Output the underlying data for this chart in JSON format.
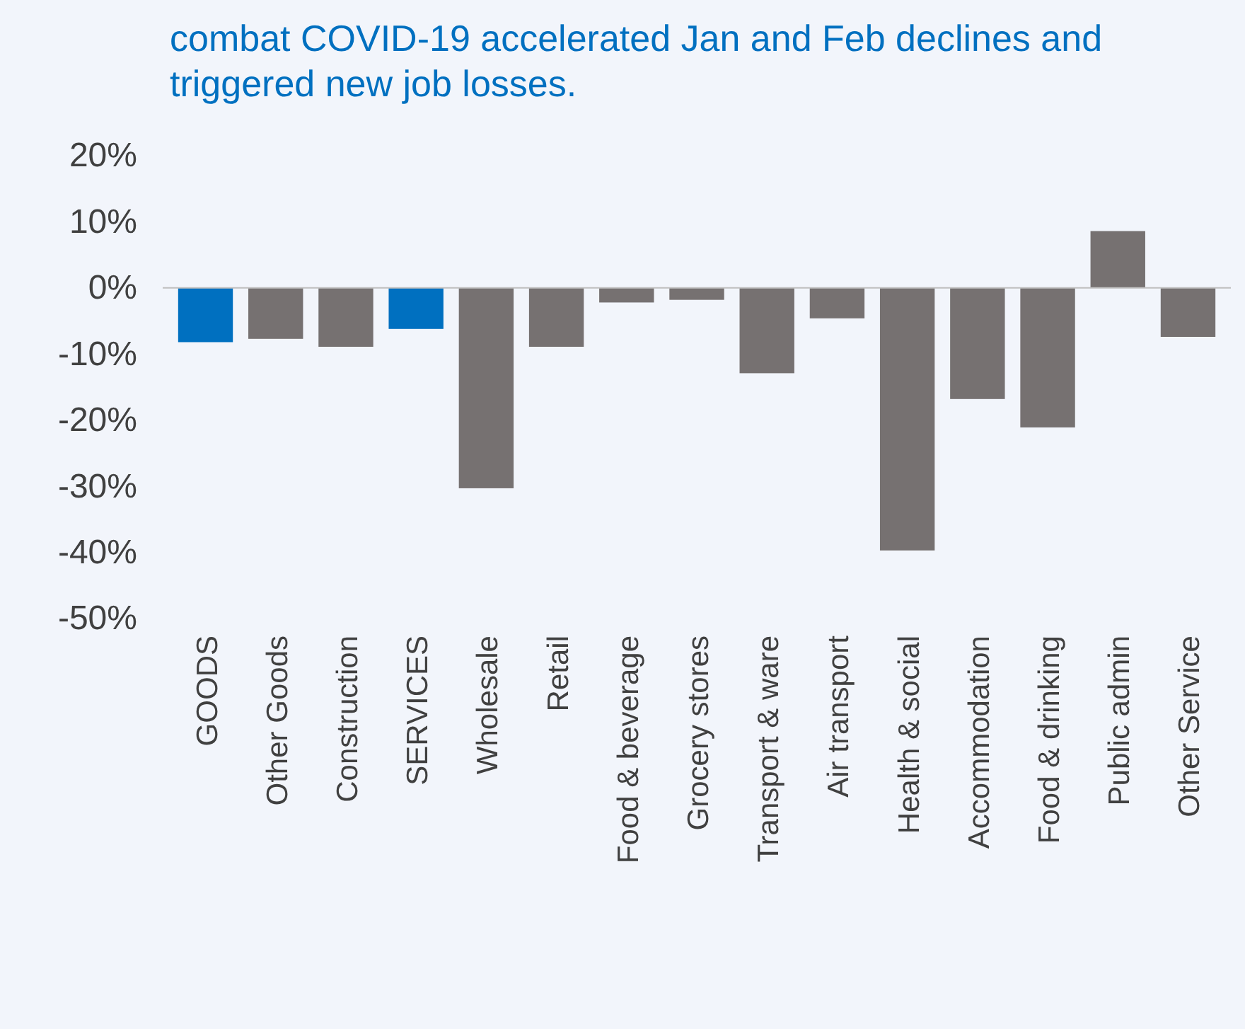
{
  "chart_data": {
    "type": "bar",
    "title": "combat COVID-19 accelerated Jan and Feb declines and triggered new job losses.",
    "categories": [
      "GOODS",
      "Other Goods",
      "Construction",
      "SERVICES",
      "Wholesale",
      "Retail",
      "Food & beverage",
      "Grocery stores",
      "Transport & ware",
      "Air transport",
      "Health & social",
      "Accommodation",
      "Food & drinking",
      "Public admin",
      "Other Service"
    ],
    "values": [
      -8.2,
      -7.7,
      -8.9,
      -6.2,
      -30.3,
      -8.9,
      -2.2,
      -1.8,
      -12.9,
      -4.6,
      -39.7,
      -16.8,
      -21.1,
      8.6,
      -7.4
    ],
    "colors": [
      "#0070c0",
      "#767171",
      "#767171",
      "#0070c0",
      "#767171",
      "#767171",
      "#767171",
      "#767171",
      "#767171",
      "#767171",
      "#767171",
      "#767171",
      "#767171",
      "#767171",
      "#767171"
    ],
    "ylim": [
      -50,
      20
    ],
    "yticks": [
      {
        "value": 20,
        "label": "20%"
      },
      {
        "value": 10,
        "label": "10%"
      },
      {
        "value": 0,
        "label": "0%"
      },
      {
        "value": -10,
        "label": "-10%"
      },
      {
        "value": -20,
        "label": "-20%"
      },
      {
        "value": -30,
        "label": "-30%"
      },
      {
        "value": -40,
        "label": "-40%"
      },
      {
        "value": -50,
        "label": "-50%"
      }
    ],
    "orientation": "vertical"
  }
}
